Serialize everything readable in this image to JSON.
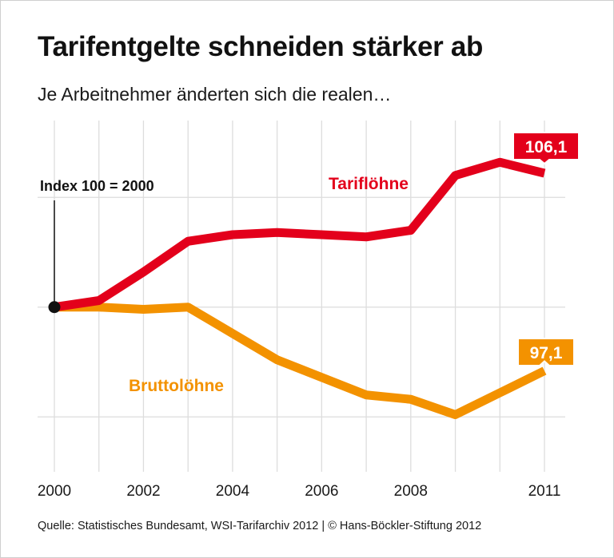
{
  "header": {
    "title": "Tarifentgelte schneiden stärker ab",
    "subtitle": "Je Arbeitnehmer änderten sich die realen…"
  },
  "footer": {
    "source": "Quelle: Statistisches Bundesamt, WSI-Tarifarchiv 2012 | © Hans-Böckler-Stiftung 2012"
  },
  "chart_data": {
    "type": "line",
    "title": "Tarifentgelte schneiden stärker ab",
    "subtitle": "Je Arbeitnehmer änderten sich die realen…",
    "xlabel": "",
    "ylabel": "",
    "x": [
      2000,
      2001,
      2002,
      2003,
      2004,
      2005,
      2006,
      2007,
      2008,
      2009,
      2010,
      2011
    ],
    "x_tick_labels": [
      "2000",
      "2002",
      "2004",
      "2006",
      "2008",
      "2011"
    ],
    "x_tick_values": [
      2000,
      2002,
      2004,
      2006,
      2008,
      2011
    ],
    "ylim": [
      92.5,
      108.5
    ],
    "grid": true,
    "annotation": "Index 100 = 2000",
    "series": [
      {
        "name": "Tariflöhne",
        "color": "#e3001b",
        "values": [
          100,
          100.3,
          101.6,
          103.0,
          103.3,
          103.4,
          103.3,
          103.2,
          103.5,
          106.0,
          106.6,
          106.1
        ],
        "end_label": "106,1"
      },
      {
        "name": "Bruttolöhne",
        "color": "#f39200",
        "values": [
          100,
          100,
          99.9,
          100,
          98.8,
          97.6,
          96.8,
          96.0,
          95.8,
          95.1,
          96.1,
          97.1
        ],
        "end_label": "97,1"
      }
    ]
  }
}
